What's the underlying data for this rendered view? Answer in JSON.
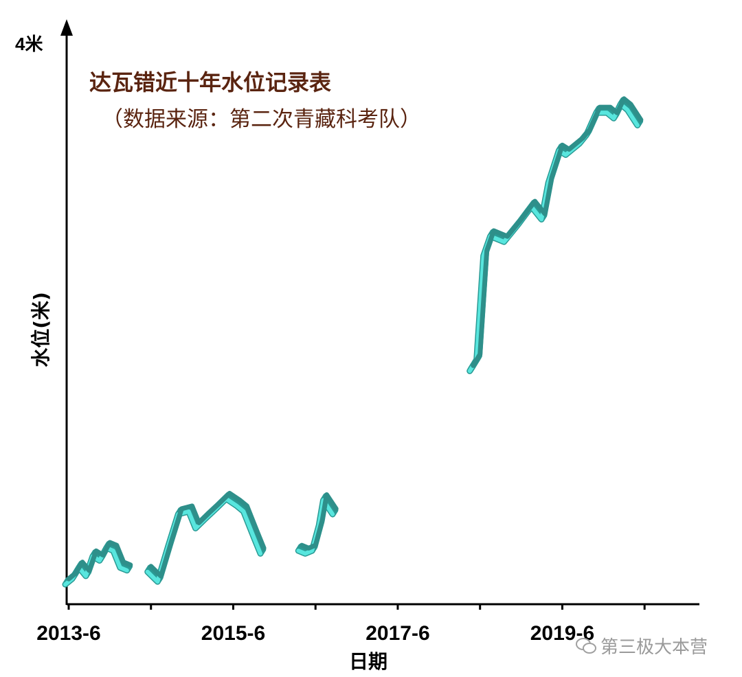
{
  "title": "达瓦错近十年水位记录表",
  "subtitle": "（数据来源：第二次青藏科考队）",
  "watermark": "第三极大本营",
  "colors": {
    "line_top": "#4fe0d8",
    "line_side": "#2a9a94",
    "title": "#5a2410"
  },
  "chart_data": {
    "type": "line",
    "title": "达瓦错近十年水位记录表",
    "subtitle": "（数据来源：第二次青藏科考队）",
    "xlabel": "日期",
    "ylabel": "水位(米)",
    "y_max_label": "4米",
    "ylim": [
      0,
      4
    ],
    "xlim": [
      "2013-6",
      "2021-2"
    ],
    "x_ticks": [
      "2013-6",
      "2014-6",
      "2015-6",
      "2016-6",
      "2017-6",
      "2018-6",
      "2019-6",
      "2020-6"
    ],
    "x_tick_labels": [
      "2013-6",
      "2015-6",
      "2017-6",
      "2019-6"
    ],
    "grid": false,
    "series": [
      {
        "segments": [
          [
            [
              "2013-6-01",
              0.18
            ],
            [
              "2013-7-01",
              0.22
            ],
            [
              "2013-8-01",
              0.3
            ],
            [
              "2013-9-01",
              0.24
            ],
            [
              "2013-10-01",
              0.38
            ],
            [
              "2013-11-01",
              0.35
            ],
            [
              "2013-12-01",
              0.44
            ],
            [
              "2014-1-01",
              0.42
            ],
            [
              "2014-2-01",
              0.3
            ],
            [
              "2014-3-01",
              0.28
            ]
          ],
          [
            [
              "2014-6-01",
              0.27
            ],
            [
              "2014-7-15",
              0.2
            ],
            [
              "2014-9-01",
              0.45
            ],
            [
              "2014-10-15",
              0.68
            ],
            [
              "2014-12-01",
              0.7
            ],
            [
              "2015-1-01",
              0.58
            ],
            [
              "2015-2-15",
              0.65
            ],
            [
              "2015-4-01",
              0.72
            ],
            [
              "2015-5-15",
              0.79
            ],
            [
              "2015-7-01",
              0.74
            ],
            [
              "2015-8-01",
              0.7
            ],
            [
              "2015-9-15",
              0.52
            ],
            [
              "2015-10-15",
              0.4
            ]
          ],
          [
            [
              "2016-4-01",
              0.42
            ],
            [
              "2016-5-01",
              0.4
            ],
            [
              "2016-6-01",
              0.42
            ],
            [
              "2016-7-01",
              0.6
            ],
            [
              "2016-7-20",
              0.78
            ],
            [
              "2016-9-01",
              0.68
            ]
          ],
          [
            [
              "2018-5-01",
              1.7
            ],
            [
              "2018-6-01",
              1.78
            ],
            [
              "2018-7-01",
              2.52
            ],
            [
              "2018-8-01",
              2.66
            ],
            [
              "2018-10-01",
              2.62
            ],
            [
              "2018-12-01",
              2.74
            ],
            [
              "2019-2-01",
              2.87
            ],
            [
              "2019-3-15",
              2.78
            ],
            [
              "2019-4-15",
              3.04
            ],
            [
              "2019-6-01",
              3.27
            ],
            [
              "2019-7-01",
              3.24
            ],
            [
              "2019-9-01",
              3.32
            ],
            [
              "2019-10-01",
              3.38
            ],
            [
              "2019-11-15",
              3.54
            ],
            [
              "2020-1-01",
              3.54
            ],
            [
              "2020-2-01",
              3.5
            ],
            [
              "2020-3-01",
              3.6
            ],
            [
              "2020-4-01",
              3.56
            ],
            [
              "2020-5-15",
              3.45
            ]
          ]
        ]
      }
    ]
  }
}
